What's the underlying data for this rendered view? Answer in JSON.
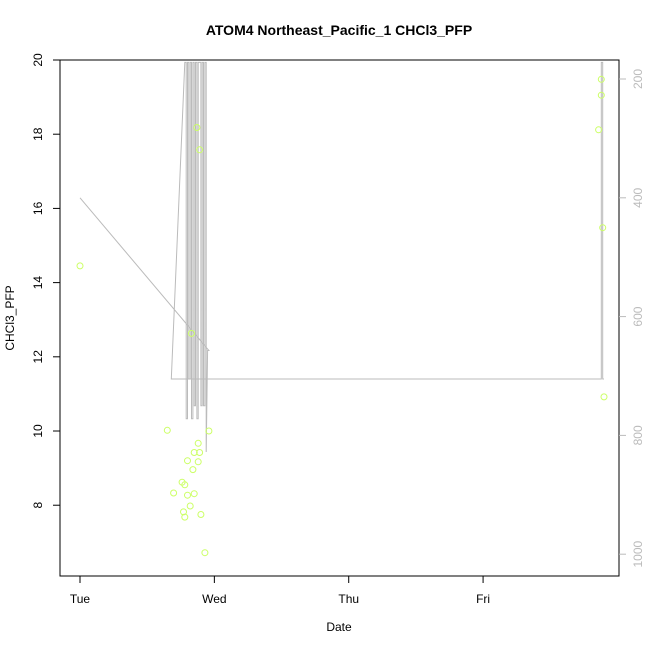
{
  "chart_data": {
    "type": "scatter",
    "title": "ATOM4 Northeast_Pacific_1 CHCl3_PFP",
    "xlabel": "Date",
    "ylabel": "CHCl3_PFP",
    "x_ticks": [
      "Tue",
      "Wed",
      "Thu",
      "Fri"
    ],
    "xlim": [
      "Tue 00:00",
      "Fri 21:36"
    ],
    "ylim": [
      6.2,
      20
    ],
    "y_ticks": [
      8,
      10,
      12,
      14,
      16,
      18,
      20
    ],
    "y2_ticks": [
      200,
      400,
      600,
      800,
      1000
    ],
    "y2lim": [
      1030,
      168
    ],
    "grid": false,
    "colors": {
      "points": "#ccff66",
      "line": "#bbbbbb",
      "axes": "#000000",
      "right_axis": "#bbbbbb"
    },
    "series": [
      {
        "type": "scatter",
        "axis": "left",
        "x": [
          "Tue 00:00",
          "Tue 15:36",
          "Tue 16:43",
          "Tue 18:14",
          "Tue 18:29",
          "Tue 18:43",
          "Tue 18:43",
          "Tue 19:12",
          "Tue 19:12",
          "Tue 19:41",
          "Tue 19:55",
          "Tue 20:10",
          "Tue 20:24",
          "Tue 20:24",
          "Tue 20:53",
          "Tue 21:07",
          "Tue 21:07",
          "Tue 21:22",
          "Tue 21:22",
          "Tue 21:36",
          "Tue 22:19",
          "Tue 23:02",
          "Fri 20:38",
          "Fri 21:07",
          "Fri 21:07",
          "Fri 21:22",
          "Fri 21:36"
        ],
        "y": [
          14.45,
          10.02,
          8.33,
          8.62,
          7.82,
          7.68,
          8.55,
          8.27,
          9.2,
          7.98,
          12.63,
          8.96,
          8.31,
          9.42,
          18.18,
          9.17,
          9.67,
          9.42,
          17.58,
          7.75,
          6.72,
          10.0,
          18.12,
          19.48,
          19.05,
          15.48,
          10.92
        ]
      },
      {
        "type": "line",
        "axis": "right",
        "x": [
          "Tue 00:00",
          "Tue 23:02",
          "Tue 22:48",
          "Tue 22:33",
          "Tue 22:33",
          "Tue 22:19",
          "Tue 22:19",
          "Tue 22:04",
          "Tue 22:04",
          "Tue 21:50",
          "Tue 21:50",
          "Tue 21:36",
          "Tue 21:36",
          "Tue 21:07",
          "Tue 21:07",
          "Tue 20:53",
          "Tue 20:53",
          "Tue 20:38",
          "Tue 20:38",
          "Tue 20:24",
          "Tue 20:24",
          "Tue 20:10",
          "Tue 20:10",
          "Tue 19:55",
          "Tue 19:55",
          "Tue 19:41",
          "Tue 19:41",
          "Tue 19:26",
          "Tue 19:26",
          "Tue 19:12",
          "Tue 19:12",
          "Tue 18:58",
          "Tue 18:58",
          "Tue 18:43",
          "Tue 16:19",
          "Tue 16:19",
          "Fri 20:38",
          "Fri 20:53",
          "Fri 21:07",
          "Fri 21:07",
          "Fri 21:22",
          "Fri 21:22",
          "Fri 21:36"
        ],
        "y": [
          400,
          657,
          657,
          828,
          172,
          172,
          750,
          750,
          172,
          172,
          750,
          750,
          172,
          172,
          772,
          772,
          172,
          172,
          750,
          750,
          172,
          172,
          772,
          772,
          172,
          172,
          705,
          705,
          172,
          172,
          772,
          772,
          172,
          172,
          705,
          705,
          705,
          705,
          705,
          172,
          172,
          705,
          705
        ]
      }
    ]
  }
}
